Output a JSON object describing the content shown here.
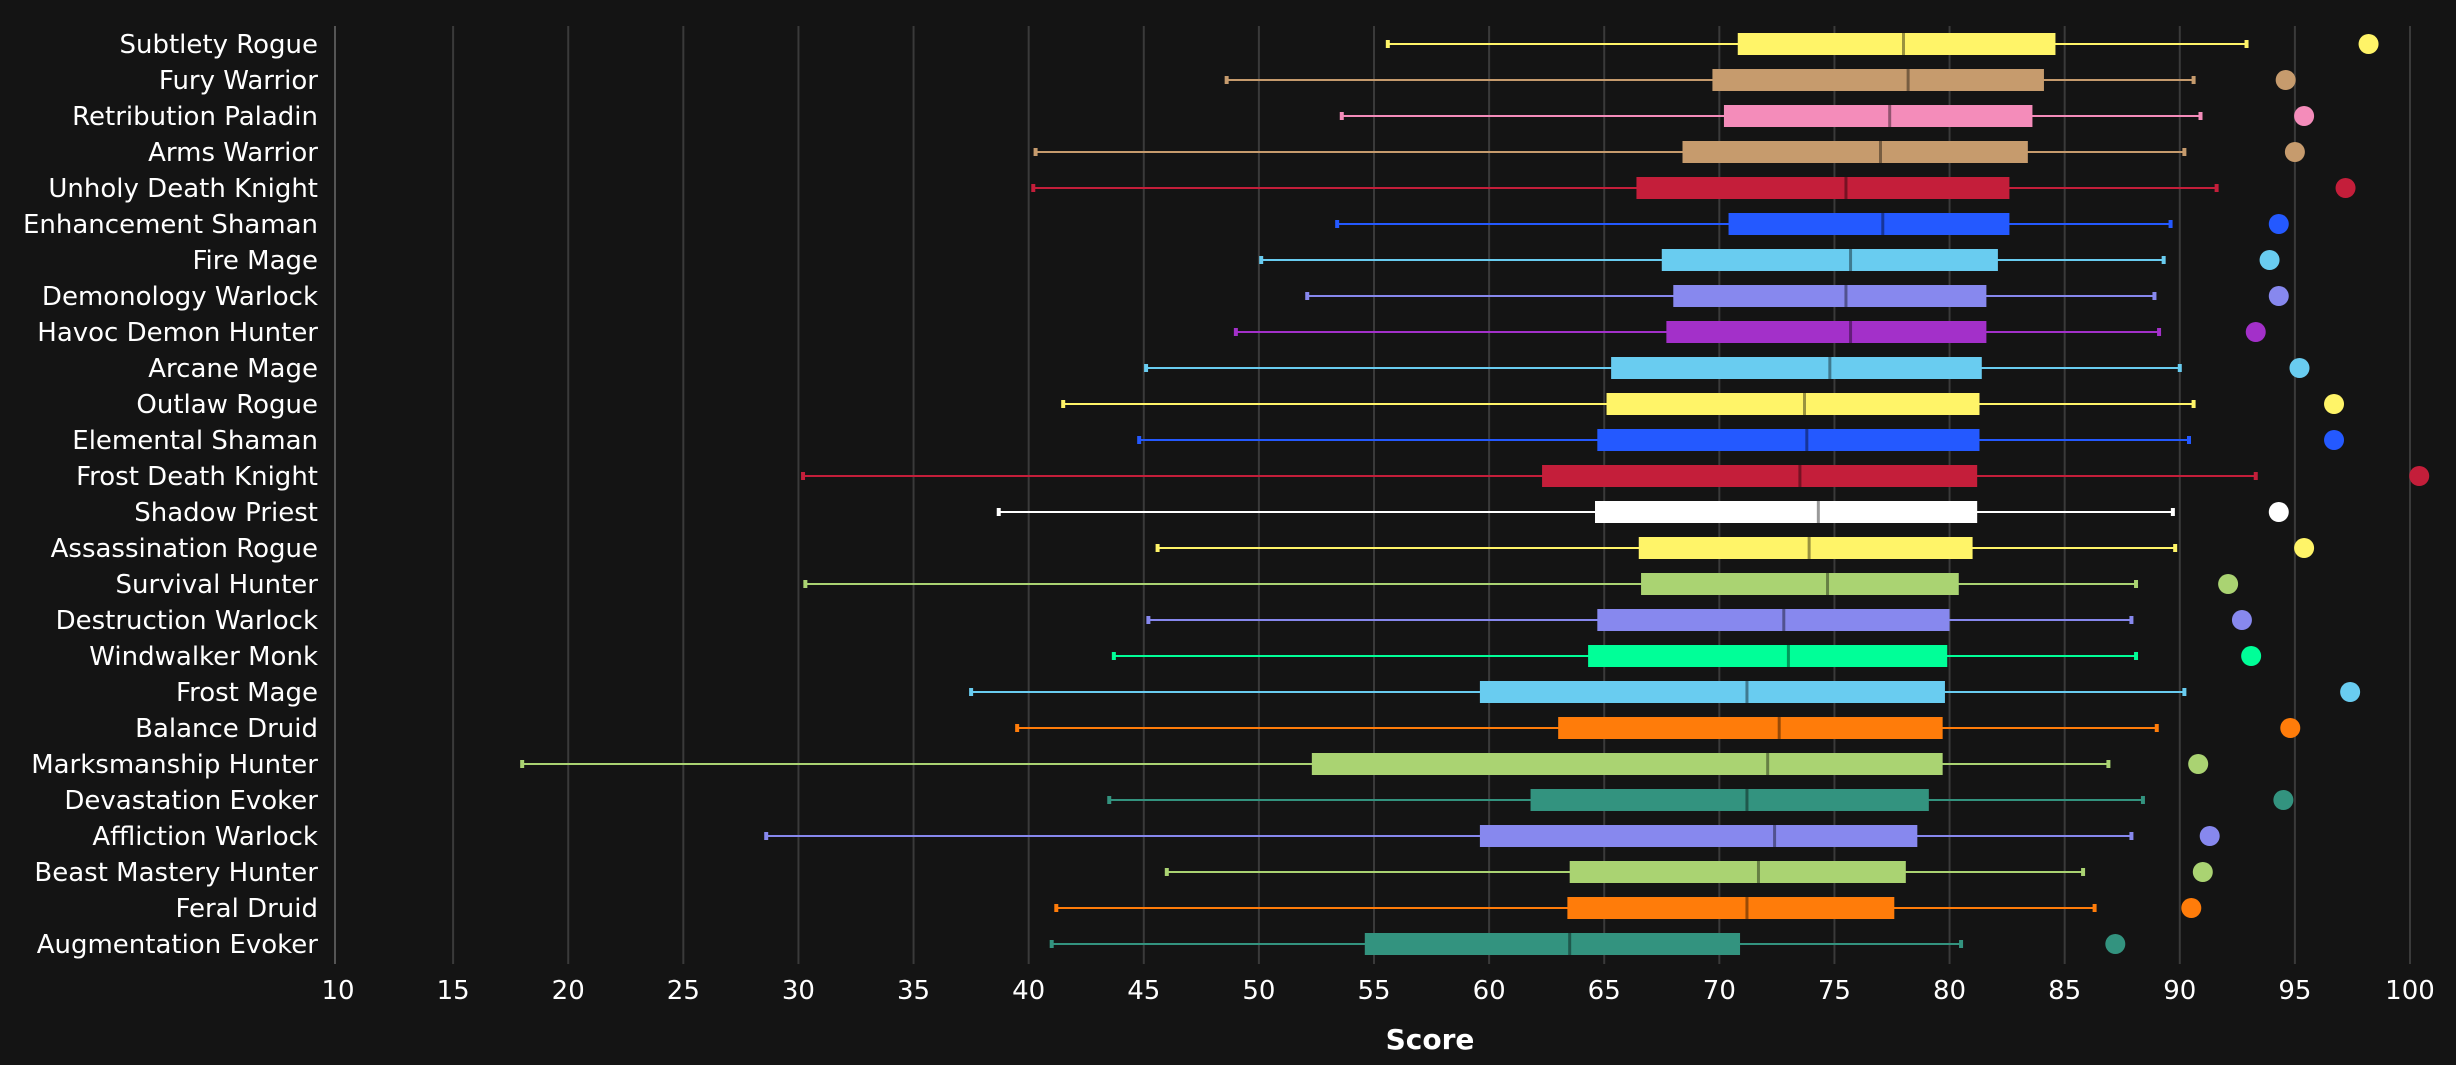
{
  "chart_data": {
    "type": "boxplot",
    "title": "",
    "xlabel": "Score",
    "ylabel": "",
    "xlim": [
      10,
      100
    ],
    "xticks": [
      10,
      15,
      20,
      25,
      30,
      35,
      40,
      45,
      50,
      55,
      60,
      65,
      70,
      75,
      80,
      85,
      90,
      95,
      100
    ],
    "grid": true,
    "series": [
      {
        "name": "Subtlety Rogue",
        "color": "#FFF468",
        "min": 55.6,
        "q1": 70.8,
        "median": 78.0,
        "q3": 84.6,
        "max": 92.9,
        "outlier": 98.2
      },
      {
        "name": "Fury Warrior",
        "color": "#C69B6D",
        "min": 48.6,
        "q1": 69.7,
        "median": 78.2,
        "q3": 84.1,
        "max": 90.6,
        "outlier": 94.6
      },
      {
        "name": "Retribution Paladin",
        "color": "#F48CBA",
        "min": 53.6,
        "q1": 70.2,
        "median": 77.4,
        "q3": 83.6,
        "max": 90.9,
        "outlier": 95.4
      },
      {
        "name": "Arms Warrior",
        "color": "#C69B6D",
        "min": 40.3,
        "q1": 68.4,
        "median": 77.0,
        "q3": 83.4,
        "max": 90.2,
        "outlier": 95.0
      },
      {
        "name": "Unholy Death Knight",
        "color": "#C41E3A",
        "min": 40.2,
        "q1": 66.4,
        "median": 75.5,
        "q3": 82.6,
        "max": 91.6,
        "outlier": 97.2
      },
      {
        "name": "Enhancement Shaman",
        "color": "#2459FF",
        "min": 53.4,
        "q1": 70.4,
        "median": 77.1,
        "q3": 82.6,
        "max": 89.6,
        "outlier": 94.3
      },
      {
        "name": "Fire Mage",
        "color": "#69CCF0",
        "min": 50.1,
        "q1": 67.5,
        "median": 75.7,
        "q3": 82.1,
        "max": 89.3,
        "outlier": 93.9
      },
      {
        "name": "Demonology Warlock",
        "color": "#8788EE",
        "min": 52.1,
        "q1": 68.0,
        "median": 75.5,
        "q3": 81.6,
        "max": 88.9,
        "outlier": 94.3
      },
      {
        "name": "Havoc Demon Hunter",
        "color": "#A330C9",
        "min": 49.0,
        "q1": 67.7,
        "median": 75.7,
        "q3": 81.6,
        "max": 89.1,
        "outlier": 93.3
      },
      {
        "name": "Arcane Mage",
        "color": "#69CCF0",
        "min": 45.1,
        "q1": 65.3,
        "median": 74.8,
        "q3": 81.4,
        "max": 90.0,
        "outlier": 95.2
      },
      {
        "name": "Outlaw Rogue",
        "color": "#FFF468",
        "min": 41.5,
        "q1": 65.1,
        "median": 73.7,
        "q3": 81.3,
        "max": 90.6,
        "outlier": 96.7
      },
      {
        "name": "Elemental Shaman",
        "color": "#2459FF",
        "min": 44.8,
        "q1": 64.7,
        "median": 73.8,
        "q3": 81.3,
        "max": 90.4,
        "outlier": 96.7
      },
      {
        "name": "Frost Death Knight",
        "color": "#C41E3A",
        "min": 30.2,
        "q1": 62.3,
        "median": 73.5,
        "q3": 81.2,
        "max": 93.3,
        "outlier": 100.4
      },
      {
        "name": "Shadow Priest",
        "color": "#FFFFFF",
        "min": 38.7,
        "q1": 64.6,
        "median": 74.3,
        "q3": 81.2,
        "max": 89.7,
        "outlier": 94.3
      },
      {
        "name": "Assassination Rogue",
        "color": "#FFF468",
        "min": 45.6,
        "q1": 66.5,
        "median": 73.9,
        "q3": 81.0,
        "max": 89.8,
        "outlier": 95.4
      },
      {
        "name": "Survival Hunter",
        "color": "#AAD372",
        "min": 30.3,
        "q1": 66.6,
        "median": 74.7,
        "q3": 80.4,
        "max": 88.1,
        "outlier": 92.1
      },
      {
        "name": "Destruction Warlock",
        "color": "#8788EE",
        "min": 45.2,
        "q1": 64.7,
        "median": 72.8,
        "q3": 80.0,
        "max": 87.9,
        "outlier": 92.7
      },
      {
        "name": "Windwalker Monk",
        "color": "#00FF98",
        "min": 43.7,
        "q1": 64.3,
        "median": 73.0,
        "q3": 79.9,
        "max": 88.1,
        "outlier": 93.1
      },
      {
        "name": "Frost Mage",
        "color": "#69CCF0",
        "min": 37.5,
        "q1": 59.6,
        "median": 71.2,
        "q3": 79.8,
        "max": 90.2,
        "outlier": 97.4
      },
      {
        "name": "Balance Druid",
        "color": "#FF7C0A",
        "min": 39.5,
        "q1": 63.0,
        "median": 72.6,
        "q3": 79.7,
        "max": 89.0,
        "outlier": 94.8
      },
      {
        "name": "Marksmanship Hunter",
        "color": "#AAD372",
        "min": 18.0,
        "q1": 52.3,
        "median": 72.1,
        "q3": 79.7,
        "max": 86.9,
        "outlier": 90.8
      },
      {
        "name": "Devastation Evoker",
        "color": "#33937F",
        "min": 43.5,
        "q1": 61.8,
        "median": 71.2,
        "q3": 79.1,
        "max": 88.4,
        "outlier": 94.5
      },
      {
        "name": "Affliction Warlock",
        "color": "#8788EE",
        "min": 28.6,
        "q1": 59.6,
        "median": 72.4,
        "q3": 78.6,
        "max": 87.9,
        "outlier": 91.3
      },
      {
        "name": "Beast Mastery Hunter",
        "color": "#AAD372",
        "min": 46.0,
        "q1": 63.5,
        "median": 71.7,
        "q3": 78.1,
        "max": 85.8,
        "outlier": 91.0
      },
      {
        "name": "Feral Druid",
        "color": "#FF7C0A",
        "min": 41.2,
        "q1": 63.4,
        "median": 71.2,
        "q3": 77.6,
        "max": 86.3,
        "outlier": 90.5
      },
      {
        "name": "Augmentation Evoker",
        "color": "#33937F",
        "min": 41.0,
        "q1": 54.6,
        "median": 63.5,
        "q3": 70.9,
        "max": 80.5,
        "outlier": 87.2
      }
    ]
  }
}
